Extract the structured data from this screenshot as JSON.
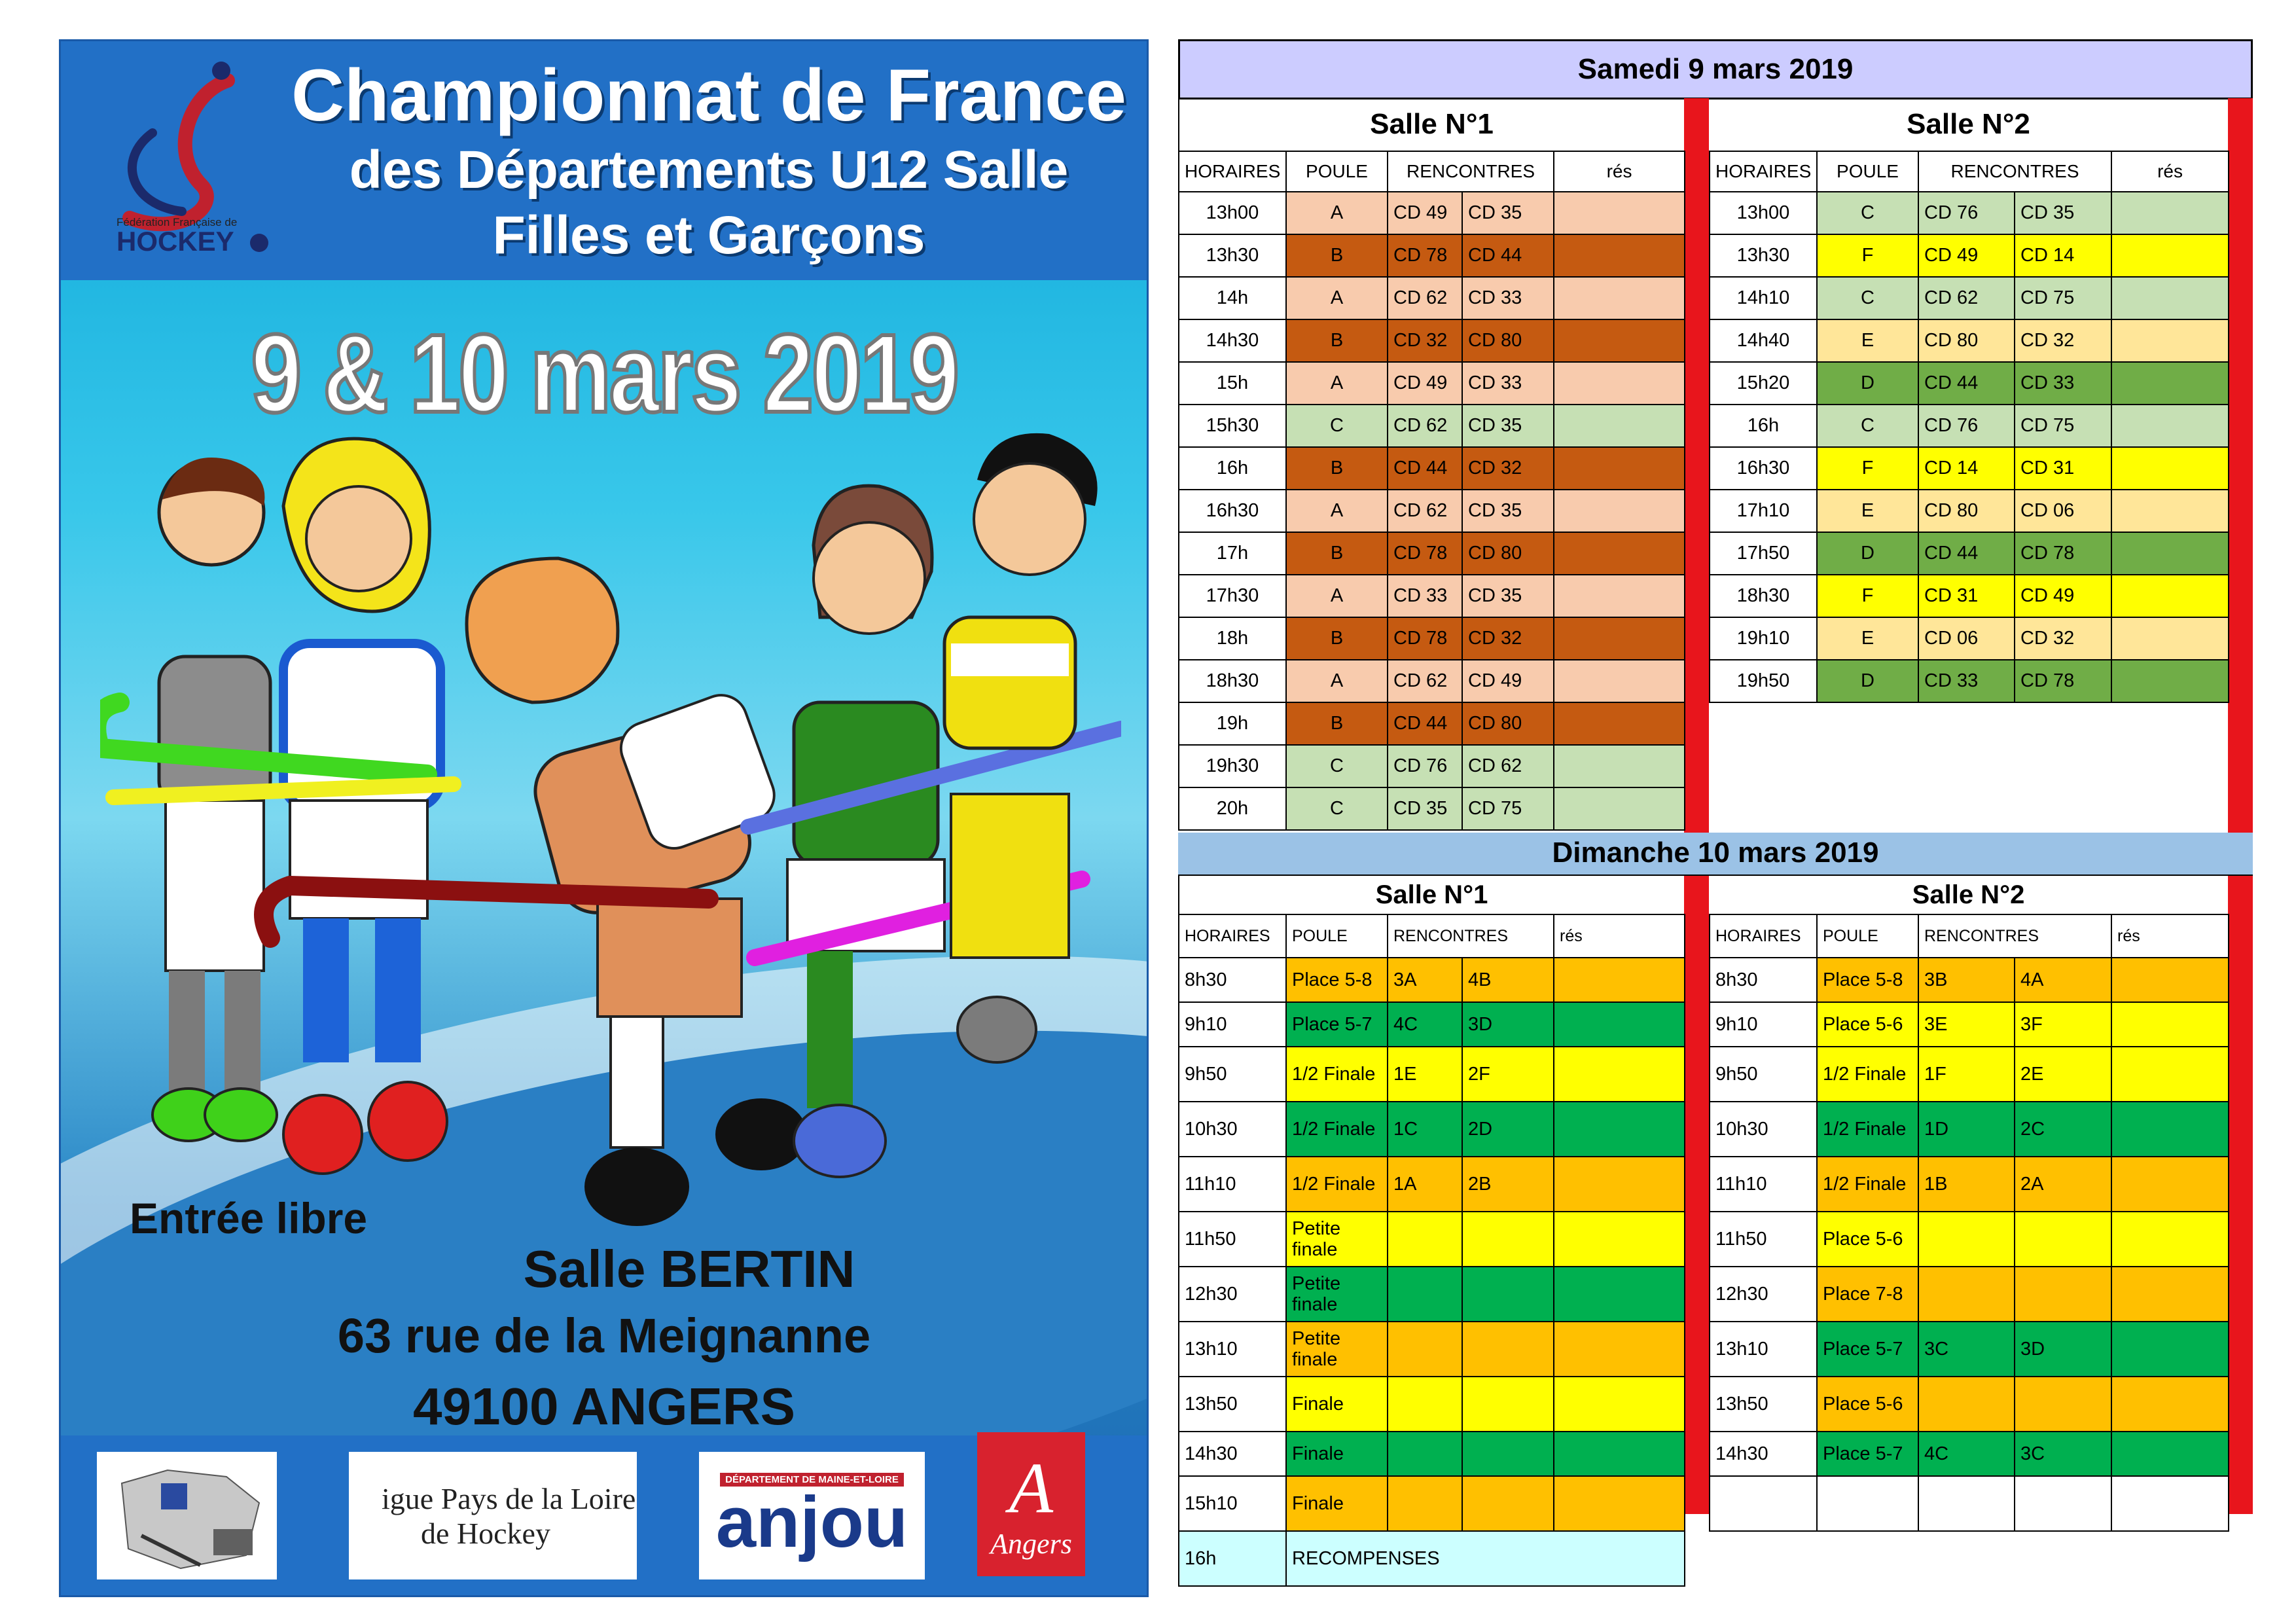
{
  "poster": {
    "title_line1": "Championnat de France",
    "title_line2": "des Départements U12 Salle",
    "title_line3": "Filles et Garçons",
    "dates": "9 & 10 mars 2019",
    "entree": "Entrée  libre",
    "venue": "Salle BERTIN",
    "street": "63 rue de la Meignanne",
    "city": "49100 ANGERS",
    "logo_ffh_small": "Fédération Française de",
    "logo_ffh_big": "HOCKEY",
    "sponsor_ligue_1": "igue Pays de la Loire",
    "sponsor_ligue_2": "de Hockey",
    "sponsor_anjou_top": "DÉPARTEMENT DE MAINE-ET-LOIRE",
    "sponsor_anjou": "anjou",
    "sponsor_angers": "Angers",
    "colors": {
      "head": "#2270c6",
      "sky": "#38c7ea"
    }
  },
  "saturday": {
    "band": "Samedi 9 mars 2019",
    "salle1": "Salle N°1",
    "salle2": "Salle N°2",
    "headers": [
      "HORAIRES",
      "POULE",
      "RENCONTRES",
      "rés"
    ],
    "salle1_rows": [
      [
        "13h00",
        "A",
        "CD 49",
        "CD 35",
        ""
      ],
      [
        "13h30",
        "B",
        "CD 78",
        "CD 44",
        ""
      ],
      [
        "14h",
        "A",
        "CD 62",
        "CD 33",
        ""
      ],
      [
        "14h30",
        "B",
        "CD 32",
        "CD 80",
        ""
      ],
      [
        "15h",
        "A",
        "CD 49",
        "CD 33",
        ""
      ],
      [
        "15h30",
        "C",
        "CD 62",
        "CD 35",
        ""
      ],
      [
        "16h",
        "B",
        "CD 44",
        "CD 32",
        ""
      ],
      [
        "16h30",
        "A",
        "CD 62",
        "CD 35",
        ""
      ],
      [
        "17h",
        "B",
        "CD 78",
        "CD 80",
        ""
      ],
      [
        "17h30",
        "A",
        "CD 33",
        "CD 35",
        ""
      ],
      [
        "18h",
        "B",
        "CD 78",
        "CD 32",
        ""
      ],
      [
        "18h30",
        "A",
        "CD 62",
        "CD 49",
        ""
      ],
      [
        "19h",
        "B",
        "CD 44",
        "CD 80",
        ""
      ],
      [
        "19h30",
        "C",
        "CD 76",
        "CD 62",
        ""
      ],
      [
        "20h",
        "C",
        "CD 35",
        "CD 75",
        ""
      ]
    ],
    "salle2_rows": [
      [
        "13h00",
        "C",
        "CD 76",
        "CD 35",
        ""
      ],
      [
        "13h30",
        "F",
        "CD 49",
        "CD 14",
        ""
      ],
      [
        "14h10",
        "C",
        "CD 62",
        "CD 75",
        ""
      ],
      [
        "14h40",
        "E",
        "CD 80",
        "CD 32",
        ""
      ],
      [
        "15h20",
        "D",
        "CD 44",
        "CD 33",
        ""
      ],
      [
        "16h",
        "C",
        "CD 76",
        "CD 75",
        ""
      ],
      [
        "16h30",
        "F",
        "CD 14",
        "CD 31",
        ""
      ],
      [
        "17h10",
        "E",
        "CD 80",
        "CD 06",
        ""
      ],
      [
        "17h50",
        "D",
        "CD 44",
        "CD 78",
        ""
      ],
      [
        "18h30",
        "F",
        "CD 31",
        "CD 49",
        ""
      ],
      [
        "19h10",
        "E",
        "CD 06",
        "CD 32",
        ""
      ],
      [
        "19h50",
        "D",
        "CD 33",
        "CD 78",
        ""
      ]
    ]
  },
  "sunday": {
    "band": "Dimanche 10 mars 2019",
    "salle1": "Salle N°1",
    "salle2": "Salle N°2",
    "headers": [
      "HORAIRES",
      "POULE",
      "RENCONTRES",
      "rés"
    ],
    "salle1_rows": [
      [
        "8h30",
        "Place 5-8",
        "3A",
        "4B",
        ""
      ],
      [
        "9h10",
        "Place 5-7",
        "4C",
        "3D",
        ""
      ],
      [
        "9h50",
        "1/2 Finale",
        "1E",
        "2F",
        ""
      ],
      [
        "10h30",
        "1/2 Finale",
        "1C",
        "2D",
        ""
      ],
      [
        "11h10",
        "1/2 Finale",
        "1A",
        "2B",
        ""
      ],
      [
        "11h50",
        "Petite finale",
        "",
        "",
        ""
      ],
      [
        "12h30",
        "Petite finale",
        "",
        "",
        ""
      ],
      [
        "13h10",
        "Petite finale",
        "",
        "",
        ""
      ],
      [
        "13h50",
        "Finale",
        "",
        "",
        ""
      ],
      [
        "14h30",
        "Finale",
        "",
        "",
        ""
      ],
      [
        "15h10",
        "Finale",
        "",
        "",
        ""
      ],
      [
        "16h",
        "RECOMPENSES",
        "",
        "",
        ""
      ]
    ],
    "salle2_rows": [
      [
        "8h30",
        "Place 5-8",
        "3B",
        "4A",
        ""
      ],
      [
        "9h10",
        "Place 5-6",
        "3E",
        "3F",
        ""
      ],
      [
        "9h50",
        "1/2 Finale",
        "1F",
        "2E",
        ""
      ],
      [
        "10h30",
        "1/2 Finale",
        "1D",
        "2C",
        ""
      ],
      [
        "11h10",
        "1/2 Finale",
        "1B",
        "2A",
        ""
      ],
      [
        "11h50",
        "Place 5-6",
        "",
        "",
        ""
      ],
      [
        "12h30",
        "Place 7-8",
        "",
        "",
        ""
      ],
      [
        "13h10",
        "Place 5-7",
        "3C",
        "3D",
        ""
      ],
      [
        "13h50",
        "Place 5-6",
        "",
        "",
        ""
      ],
      [
        "14h30",
        "Place 5-7",
        "4C",
        "3C",
        ""
      ],
      [
        "",
        "",
        "",
        "",
        ""
      ]
    ]
  },
  "colors": {
    "A": "#f8cbad",
    "B": "#c55a11",
    "C": "#c6e0b4",
    "D": "#70ad47",
    "E": "#ffe699",
    "F": "#ffff00",
    "orange": "#ffc000",
    "green": "#00b050",
    "yellow": "#ffff00",
    "cyan": "#ccffff",
    "sat_band": "#ccccff",
    "sun_band": "#9bc2e6",
    "bar": "#e8151c"
  }
}
